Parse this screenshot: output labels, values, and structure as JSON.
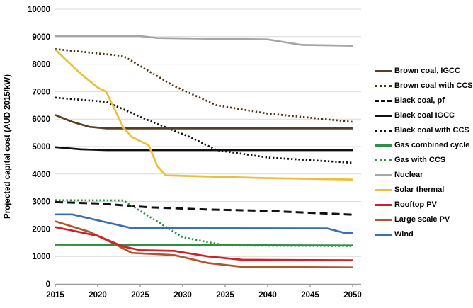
{
  "figure": {
    "background_color": "#ffffff",
    "grid_color": "#d9d9d9",
    "axis_color": "#9b9b9b",
    "text_color": "#000000"
  },
  "chart_data": {
    "type": "line",
    "title": "",
    "xlabel": "",
    "ylabel": "Projected capital cost (AUD 2015/kW)",
    "xlim": [
      2015,
      2050
    ],
    "ylim": [
      0,
      10000
    ],
    "x_ticks": [
      2015,
      2020,
      2025,
      2030,
      2035,
      2040,
      2045,
      2050
    ],
    "y_ticks": [
      0,
      1000,
      2000,
      3000,
      4000,
      5000,
      6000,
      7000,
      8000,
      9000,
      10000
    ],
    "grid": "horizontal",
    "legend_position": "right",
    "series": [
      {
        "name": "Brown coal, IGCC",
        "color": "#5a3e1f",
        "line_style": "solid",
        "points": [
          [
            2015,
            6150
          ],
          [
            2017,
            5900
          ],
          [
            2019,
            5720
          ],
          [
            2021,
            5660
          ],
          [
            2050,
            5660
          ]
        ]
      },
      {
        "name": "Brown coal with CCS",
        "color": "#4a3214",
        "line_style": "dotted",
        "points": [
          [
            2015,
            8550
          ],
          [
            2023,
            8300
          ],
          [
            2029,
            7200
          ],
          [
            2034,
            6500
          ],
          [
            2040,
            6200
          ],
          [
            2050,
            5900
          ]
        ]
      },
      {
        "name": "Black coal, pf",
        "color": "#111111",
        "line_style": "dashed",
        "points": [
          [
            2015,
            2980
          ],
          [
            2020,
            2930
          ],
          [
            2026,
            2790
          ],
          [
            2033,
            2710
          ],
          [
            2040,
            2660
          ],
          [
            2050,
            2520
          ]
        ]
      },
      {
        "name": "Black coal IGCC",
        "color": "#111111",
        "line_style": "solid",
        "points": [
          [
            2015,
            4980
          ],
          [
            2018,
            4900
          ],
          [
            2021,
            4870
          ],
          [
            2050,
            4870
          ]
        ]
      },
      {
        "name": "Black coal with CCS",
        "color": "#111111",
        "line_style": "dotted",
        "points": [
          [
            2015,
            6780
          ],
          [
            2021,
            6630
          ],
          [
            2026,
            5950
          ],
          [
            2031,
            5330
          ],
          [
            2034,
            4870
          ],
          [
            2040,
            4600
          ],
          [
            2050,
            4410
          ]
        ]
      },
      {
        "name": "Gas combined cycle",
        "color": "#2e9140",
        "line_style": "solid",
        "points": [
          [
            2015,
            1430
          ],
          [
            2050,
            1400
          ]
        ]
      },
      {
        "name": "Gas with CCS",
        "color": "#2e9140",
        "line_style": "dotted",
        "points": [
          [
            2015,
            3050
          ],
          [
            2023,
            3040
          ],
          [
            2030,
            1700
          ],
          [
            2035,
            1400
          ],
          [
            2050,
            1380
          ]
        ]
      },
      {
        "name": "Nuclear",
        "color": "#a6a6a6",
        "line_style": "solid",
        "points": [
          [
            2015,
            9020
          ],
          [
            2025,
            9020
          ],
          [
            2027,
            8950
          ],
          [
            2040,
            8900
          ],
          [
            2044,
            8700
          ],
          [
            2050,
            8670
          ]
        ]
      },
      {
        "name": "Solar thermal",
        "color": "#ecbe3c",
        "line_style": "solid",
        "points": [
          [
            2015,
            8530
          ],
          [
            2018,
            7650
          ],
          [
            2020,
            7150
          ],
          [
            2021,
            7000
          ],
          [
            2023,
            5700
          ],
          [
            2024,
            5350
          ],
          [
            2026,
            5050
          ],
          [
            2027,
            4300
          ],
          [
            2028,
            3950
          ],
          [
            2040,
            3850
          ],
          [
            2050,
            3800
          ]
        ]
      },
      {
        "name": "Rooftop PV",
        "color": "#cf2128",
        "line_style": "solid",
        "points": [
          [
            2015,
            2070
          ],
          [
            2020,
            1750
          ],
          [
            2023,
            1360
          ],
          [
            2025,
            1230
          ],
          [
            2029,
            1200
          ],
          [
            2033,
            1000
          ],
          [
            2037,
            880
          ],
          [
            2050,
            860
          ]
        ]
      },
      {
        "name": "Large scale PV",
        "color": "#b0562c",
        "line_style": "solid",
        "points": [
          [
            2015,
            2280
          ],
          [
            2019,
            1900
          ],
          [
            2022,
            1450
          ],
          [
            2024,
            1130
          ],
          [
            2029,
            1050
          ],
          [
            2033,
            760
          ],
          [
            2037,
            620
          ],
          [
            2050,
            600
          ]
        ]
      },
      {
        "name": "Wind",
        "color": "#3a70ad",
        "line_style": "solid",
        "points": [
          [
            2015,
            2530
          ],
          [
            2017,
            2530
          ],
          [
            2024,
            2030
          ],
          [
            2047,
            2020
          ],
          [
            2049,
            1860
          ],
          [
            2050,
            1860
          ]
        ]
      }
    ]
  }
}
